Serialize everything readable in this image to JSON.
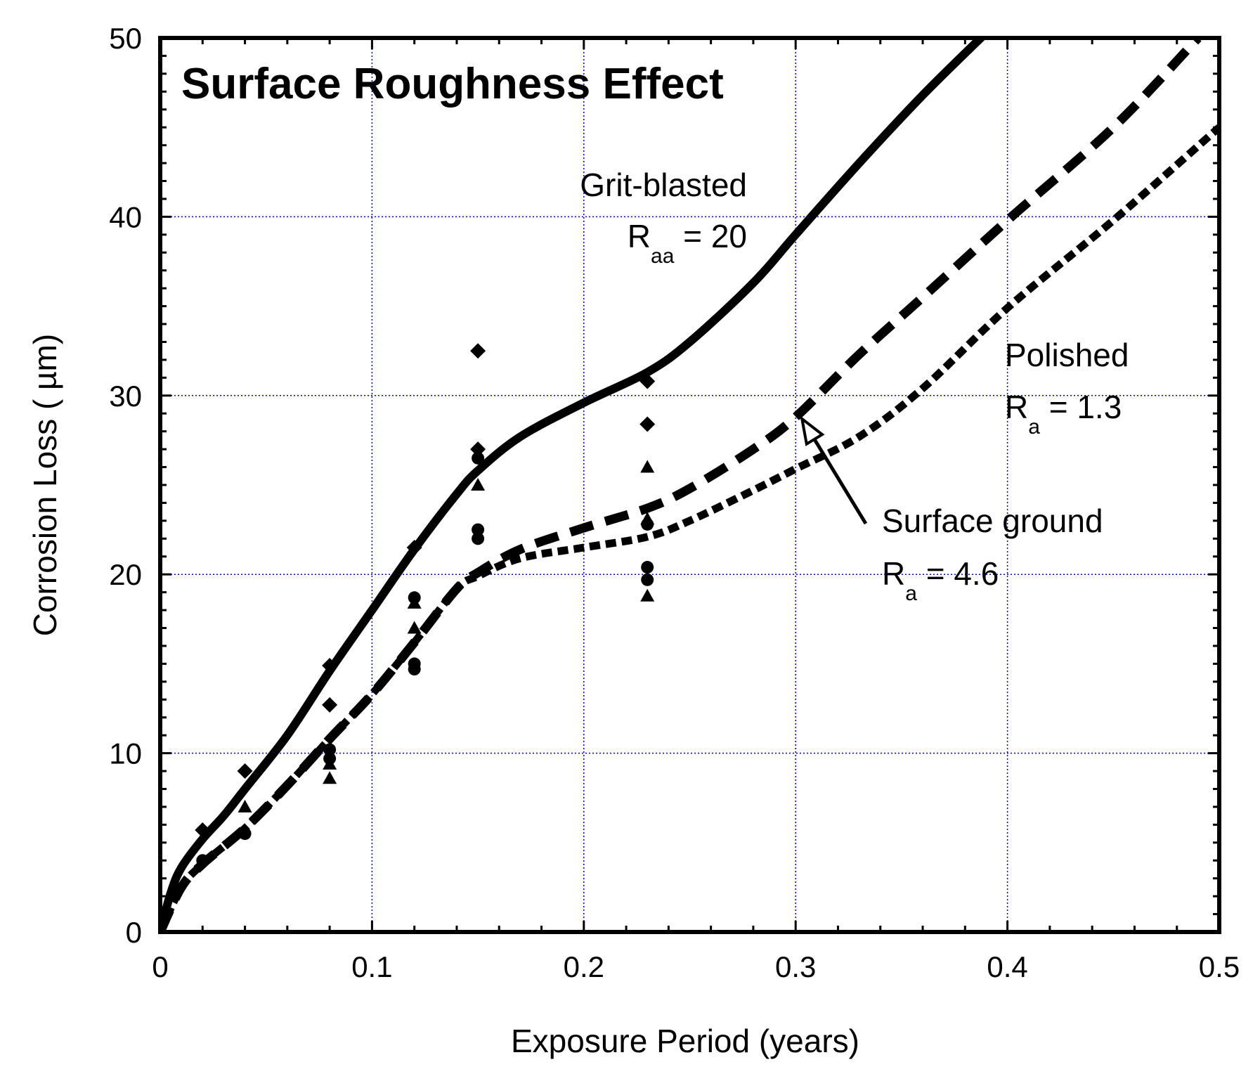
{
  "chart_data": {
    "type": "line",
    "title": "Surface Roughness Effect",
    "xlabel": "Exposure Period (years)",
    "ylabel": "Corrosion Loss ( µm)",
    "xlim": [
      0,
      0.5
    ],
    "ylim": [
      0,
      50
    ],
    "xticks": [
      "0",
      "0.1",
      "0.2",
      "0.3",
      "0.4",
      "0.5"
    ],
    "yticks": [
      "0",
      "10",
      "20",
      "30",
      "40",
      "50"
    ],
    "grid": true,
    "grid_color": "#0000cc",
    "series": [
      {
        "name": "Grit-blasted",
        "style": "solid",
        "x": [
          0,
          0.005,
          0.01,
          0.02,
          0.03,
          0.04,
          0.06,
          0.08,
          0.1,
          0.12,
          0.14,
          0.15,
          0.17,
          0.2,
          0.23,
          0.25,
          0.28,
          0.3,
          0.33,
          0.36,
          0.39
        ],
        "y": [
          0,
          2.2,
          3.6,
          5.2,
          6.5,
          8,
          11,
          14.6,
          18,
          21.4,
          24.5,
          25.8,
          27.7,
          29.6,
          31.3,
          33,
          36.3,
          39,
          43,
          46.8,
          50.3
        ]
      },
      {
        "name": "Surface ground",
        "style": "dashed",
        "x": [
          0,
          0.01,
          0.02,
          0.04,
          0.06,
          0.08,
          0.1,
          0.12,
          0.14,
          0.15,
          0.17,
          0.2,
          0.23,
          0.25,
          0.28,
          0.3,
          0.33,
          0.36,
          0.4,
          0.45,
          0.49
        ],
        "y": [
          0,
          2.5,
          3.8,
          5.8,
          8.2,
          10.8,
          13.3,
          16.2,
          19.2,
          20.1,
          21.4,
          22.6,
          23.7,
          24.8,
          27,
          28.8,
          32.3,
          35.5,
          39.8,
          45,
          50
        ]
      },
      {
        "name": "Polished",
        "style": "dotted",
        "x": [
          0,
          0.01,
          0.02,
          0.04,
          0.06,
          0.08,
          0.1,
          0.12,
          0.14,
          0.15,
          0.17,
          0.2,
          0.23,
          0.25,
          0.28,
          0.3,
          0.33,
          0.36,
          0.4,
          0.45,
          0.5
        ],
        "y": [
          0,
          2.5,
          3.8,
          5.8,
          8.2,
          10.8,
          13.3,
          16.2,
          19.2,
          19.9,
          20.9,
          21.5,
          22.1,
          23,
          24.7,
          25.9,
          27.7,
          30.4,
          34.9,
          39.8,
          45
        ]
      }
    ],
    "markers": [
      {
        "shape": "diamond",
        "x": 0.02,
        "y": 5.7
      },
      {
        "shape": "diamond",
        "x": 0.04,
        "y": 9
      },
      {
        "shape": "diamond",
        "x": 0.08,
        "y": 14.9
      },
      {
        "shape": "diamond",
        "x": 0.08,
        "y": 12.7
      },
      {
        "shape": "diamond",
        "x": 0.12,
        "y": 21.5
      },
      {
        "shape": "diamond",
        "x": 0.15,
        "y": 32.5
      },
      {
        "shape": "diamond",
        "x": 0.15,
        "y": 27
      },
      {
        "shape": "diamond",
        "x": 0.23,
        "y": 30.8
      },
      {
        "shape": "diamond",
        "x": 0.23,
        "y": 28.4
      },
      {
        "shape": "triangle",
        "x": 0.04,
        "y": 7
      },
      {
        "shape": "triangle",
        "x": 0.08,
        "y": 9.4
      },
      {
        "shape": "triangle",
        "x": 0.08,
        "y": 8.6
      },
      {
        "shape": "triangle",
        "x": 0.12,
        "y": 17
      },
      {
        "shape": "triangle",
        "x": 0.12,
        "y": 18.4
      },
      {
        "shape": "triangle",
        "x": 0.15,
        "y": 25
      },
      {
        "shape": "triangle",
        "x": 0.23,
        "y": 26
      },
      {
        "shape": "triangle",
        "x": 0.23,
        "y": 23.1
      },
      {
        "shape": "triangle",
        "x": 0.23,
        "y": 18.8
      },
      {
        "shape": "circle",
        "x": 0.02,
        "y": 4
      },
      {
        "shape": "circle",
        "x": 0.04,
        "y": 5.5
      },
      {
        "shape": "circle",
        "x": 0.08,
        "y": 10.2
      },
      {
        "shape": "circle",
        "x": 0.08,
        "y": 9.7
      },
      {
        "shape": "circle",
        "x": 0.12,
        "y": 18.7
      },
      {
        "shape": "circle",
        "x": 0.12,
        "y": 15
      },
      {
        "shape": "circle",
        "x": 0.12,
        "y": 14.7
      },
      {
        "shape": "circle",
        "x": 0.15,
        "y": 22.5
      },
      {
        "shape": "circle",
        "x": 0.15,
        "y": 22
      },
      {
        "shape": "circle",
        "x": 0.15,
        "y": 26.5
      },
      {
        "shape": "circle",
        "x": 0.23,
        "y": 20.4
      },
      {
        "shape": "circle",
        "x": 0.23,
        "y": 19.7
      },
      {
        "shape": "circle",
        "x": 0.23,
        "y": 22.8
      }
    ],
    "annotations": {
      "grit_blasted": {
        "line1": "Grit-blasted",
        "r": "R",
        "sub": "aa",
        "eq": " = 20"
      },
      "polished": {
        "line1": "Polished",
        "r": "R",
        "sub": "a",
        "eq": " = 1.3"
      },
      "surface_ground": {
        "line1": "Surface ground",
        "r": "R",
        "sub": "a",
        "eq": " = 4.6"
      },
      "arrow_target": {
        "x": 0.303,
        "y": 28.7
      }
    }
  }
}
